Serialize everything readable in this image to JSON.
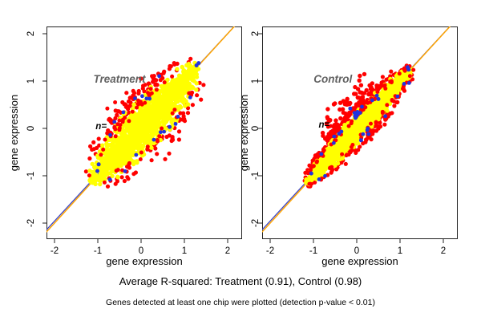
{
  "figure": {
    "caption_r_squared": "Average R-squared: Treatment (0.91), Control (0.98)",
    "footnote": "Genes detected at least one chip were plotted (detection p-value < 0.01)"
  },
  "colors": {
    "background": "#ffffff",
    "point_main": "#ffff00",
    "point_outlier": "#ff0000",
    "point_rare": "#2233dd",
    "identity_line": "#ffa500",
    "fit_line": "#3a45c8",
    "panel_title_text": "#606060",
    "axis_text": "#000000",
    "border": "#222222"
  },
  "chart_data": [
    {
      "type": "scatter",
      "title": "Treatment",
      "xlabel": "gene expression",
      "ylabel": "gene expression",
      "xlim": [
        -2.2,
        2.35
      ],
      "ylim": [
        -2.35,
        2.15
      ],
      "xticks": [
        -2,
        -1,
        0,
        1,
        2
      ],
      "yticks": [
        -2,
        -1,
        0,
        1,
        2
      ],
      "r_squared": 0.91,
      "annotation": {
        "text": "n=",
        "x": -1.05,
        "y": -0.02
      },
      "title_pos": {
        "x": -0.5,
        "y": 0.97
      },
      "lines": {
        "identity": {
          "slope": 1,
          "intercept": 0
        },
        "fit": {
          "slope": 0.99,
          "intercept": 0.023
        }
      },
      "point_cloud": {
        "seed": 7,
        "band_from": -1.15,
        "band_to": 1.32,
        "half_width": 0.52,
        "n_main": 1550,
        "n_fringe": 150,
        "fringe_upper_bias": 0.64,
        "n_speckle": 60,
        "n_rare": 16
      },
      "notable_points": [
        {
          "x": 1.28,
          "y": 1.33,
          "color": "rare"
        },
        {
          "x": 1.33,
          "y": 1.38,
          "color": "rare"
        },
        {
          "x": -0.98,
          "y": -0.76,
          "color": "rare"
        },
        {
          "x": -1.01,
          "y": -0.9,
          "color": "rare"
        },
        {
          "x": 0.66,
          "y": 0.03,
          "color": "rare"
        },
        {
          "x": -0.72,
          "y": -1.08,
          "color": "rare"
        },
        {
          "x": -0.78,
          "y": 0.42,
          "color": "outlier"
        },
        {
          "x": -0.6,
          "y": 0.55,
          "color": "outlier"
        }
      ]
    },
    {
      "type": "scatter",
      "title": "Control",
      "xlabel": "gene expression",
      "ylabel": "gene expression",
      "xlim": [
        -2.2,
        2.35
      ],
      "ylim": [
        -2.35,
        2.15
      ],
      "xticks": [
        -2,
        -1,
        0,
        1,
        2
      ],
      "yticks": [
        -2,
        -1,
        0,
        1,
        2
      ],
      "r_squared": 0.98,
      "annotation": {
        "text": "n=",
        "x": -0.88,
        "y": 0.02
      },
      "title_pos": {
        "x": -0.55,
        "y": 0.97
      },
      "lines": {
        "identity": {
          "slope": 1,
          "intercept": 0
        },
        "fit": {
          "slope": 0.99,
          "intercept": 0.023
        }
      },
      "point_cloud": {
        "seed": 11,
        "band_from": -1.17,
        "band_to": 1.28,
        "half_width": 0.27,
        "n_main": 1350,
        "n_fringe": 240,
        "fringe_upper_bias": 0.6,
        "n_speckle": 80,
        "n_rare": 26,
        "bulge": {
          "from": -0.5,
          "to": 0.68,
          "n": 95,
          "max_off": 0.5
        }
      },
      "notable_points": [
        {
          "x": 1.2,
          "y": 1.24,
          "color": "rare"
        },
        {
          "x": -1.05,
          "y": -0.95,
          "color": "rare"
        },
        {
          "x": 0.5,
          "y": 0.62,
          "color": "rare"
        },
        {
          "x": -0.15,
          "y": 0.42,
          "color": "rare"
        },
        {
          "x": 0.1,
          "y": -0.25,
          "color": "rare"
        },
        {
          "x": -0.6,
          "y": 0.05,
          "color": "outlier"
        },
        {
          "x": -0.64,
          "y": 0.15,
          "color": "outlier"
        }
      ]
    }
  ]
}
